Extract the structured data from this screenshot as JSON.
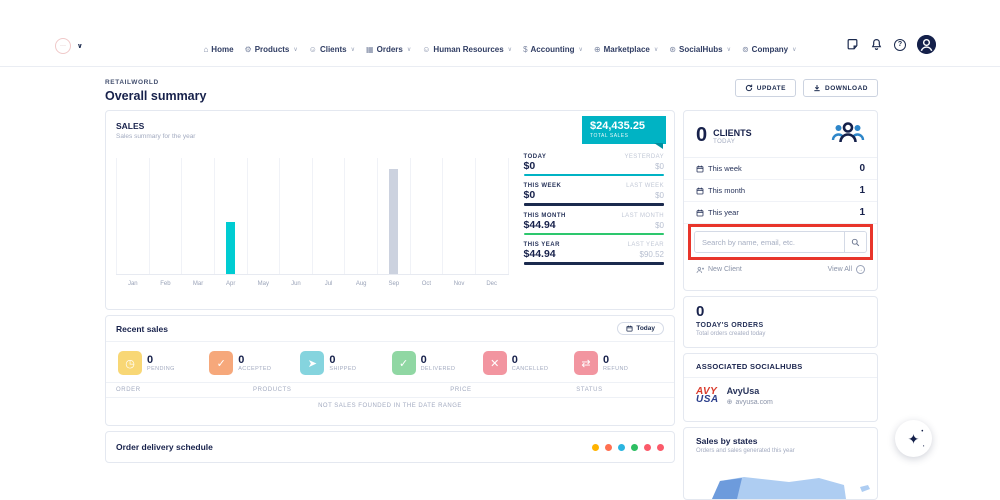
{
  "topbar": {
    "nav": [
      {
        "id": "home",
        "icon": "monitor-icon",
        "glyph": "⌂",
        "label": "Home",
        "caret": false
      },
      {
        "id": "products",
        "icon": "gear-icon",
        "glyph": "⚙",
        "label": "Products",
        "caret": true
      },
      {
        "id": "clients",
        "icon": "user-icon",
        "glyph": "☺",
        "label": "Clients",
        "caret": true
      },
      {
        "id": "orders",
        "icon": "grid-icon",
        "glyph": "▦",
        "label": "Orders",
        "caret": true
      },
      {
        "id": "human-resources",
        "icon": "user-icon",
        "glyph": "☺",
        "label": "Human Resources",
        "caret": true
      },
      {
        "id": "accounting",
        "icon": "dollar-icon",
        "glyph": "$",
        "label": "Accounting",
        "caret": true
      },
      {
        "id": "marketplace",
        "icon": "globe-icon",
        "glyph": "⊕",
        "label": "Marketplace",
        "caret": true
      },
      {
        "id": "socialhubs",
        "icon": "globe-icon",
        "glyph": "⊛",
        "label": "SocialHubs",
        "caret": true
      },
      {
        "id": "company",
        "icon": "globe-icon",
        "glyph": "⊚",
        "label": "Company",
        "caret": true
      }
    ]
  },
  "header": {
    "breadcrumb": "RETAILWORLD",
    "title": "Overall summary",
    "update_label": "UPDATE",
    "download_label": "DOWNLOAD"
  },
  "sales_card": {
    "title": "SALES",
    "subtitle": "Sales summary for the year",
    "total_badge": {
      "amount": "$24,435.25",
      "label": "TOTAL SALES"
    },
    "stats": [
      {
        "label": "TODAY",
        "value": "$0",
        "compare_label": "YESTERDAY",
        "compare_value": "$0",
        "underline": "#00b3c4",
        "underline_height": 2
      },
      {
        "label": "THIS WEEK",
        "value": "$0",
        "compare_label": "LAST WEEK",
        "compare_value": "$0",
        "underline": "#1b2a4e",
        "underline_height": 3
      },
      {
        "label": "THIS MONTH",
        "value": "$44.94",
        "compare_label": "LAST MONTH",
        "compare_value": "$0",
        "underline": "#2dc76d",
        "underline_height": 2
      },
      {
        "label": "THIS YEAR",
        "value": "$44.94",
        "compare_label": "LAST YEAR",
        "compare_value": "$90.52",
        "underline": "#1b2a4e",
        "underline_height": 3
      }
    ],
    "chart_data": {
      "type": "bar",
      "title": "SALES",
      "categories": [
        "Jan",
        "Feb",
        "Mar",
        "Apr",
        "May",
        "Jun",
        "Jul",
        "Aug",
        "Sep",
        "Oct",
        "Nov",
        "Dec"
      ],
      "series": [
        {
          "name": "This year",
          "color": "#00ccd2",
          "values": [
            0,
            0,
            0,
            44.94,
            0,
            0,
            0,
            0,
            0,
            0,
            0,
            0
          ]
        },
        {
          "name": "Last year",
          "color": "#ccd2df",
          "values": [
            0,
            0,
            0,
            0,
            0,
            0,
            0,
            0,
            90.52,
            0,
            0,
            0
          ]
        }
      ],
      "ylim": [
        0,
        100
      ],
      "grid": "vertical",
      "legend": "none"
    }
  },
  "recent_sales": {
    "title": "Recent sales",
    "today_button": "Today",
    "statuses": [
      {
        "count": "0",
        "label": "PENDING",
        "color": "#f8d775",
        "icon": "clock-icon",
        "glyph": "◷"
      },
      {
        "count": "0",
        "label": "ACCEPTED",
        "color": "#f6a87b",
        "icon": "check-icon",
        "glyph": "✓"
      },
      {
        "count": "0",
        "label": "SHIPPED",
        "color": "#85d4de",
        "icon": "paper-plane-icon",
        "glyph": "➤"
      },
      {
        "count": "0",
        "label": "DELIVERED",
        "color": "#90d7a3",
        "icon": "clipboard-check-icon",
        "glyph": "✓"
      },
      {
        "count": "0",
        "label": "CANCELLED",
        "color": "#f295a0",
        "icon": "cross-icon",
        "glyph": "✕"
      },
      {
        "count": "0",
        "label": "REFUND",
        "color": "#f295a0",
        "icon": "refund-arrows-icon",
        "glyph": "⇄"
      }
    ],
    "table_headers": [
      "ORDER",
      "PRODUCTS",
      "PRICE",
      "STATUS"
    ],
    "empty_message": "NOT SALES FOUNDED IN THE DATE RANGE"
  },
  "order_delivery": {
    "title": "Order delivery schedule",
    "dot_colors": [
      "#ffb300",
      "#ff7050",
      "#2bb5e0",
      "#2dbe62",
      "#fb5a6a",
      "#fb5a6a"
    ]
  },
  "clients_card": {
    "count": "0",
    "label": "CLIENTS",
    "sublabel": "TODAY",
    "rows": [
      {
        "label": "This week",
        "value": "0"
      },
      {
        "label": "This month",
        "value": "1"
      },
      {
        "label": "This year",
        "value": "1"
      }
    ],
    "search_placeholder": "Search by name, email, etc.",
    "new_client_label": "New Client",
    "view_all_label": "View All",
    "highlight_color": "#e8352b"
  },
  "todays_orders": {
    "count": "0",
    "label": "TODAY'S ORDERS",
    "sublabel": "Total orders created today"
  },
  "socialhubs": {
    "title": "ASSOCIATED SOCIALHUBS",
    "logo_line1": "AVY",
    "logo_line2": "USA",
    "logo_colors": {
      "line1": "#d93a2b",
      "line2": "#2b3f8c"
    },
    "name": "AvyUsa",
    "domain": "avyusa.com"
  },
  "sales_by_states": {
    "title": "Sales by states",
    "subtitle": "Orders and sales generated this year"
  }
}
